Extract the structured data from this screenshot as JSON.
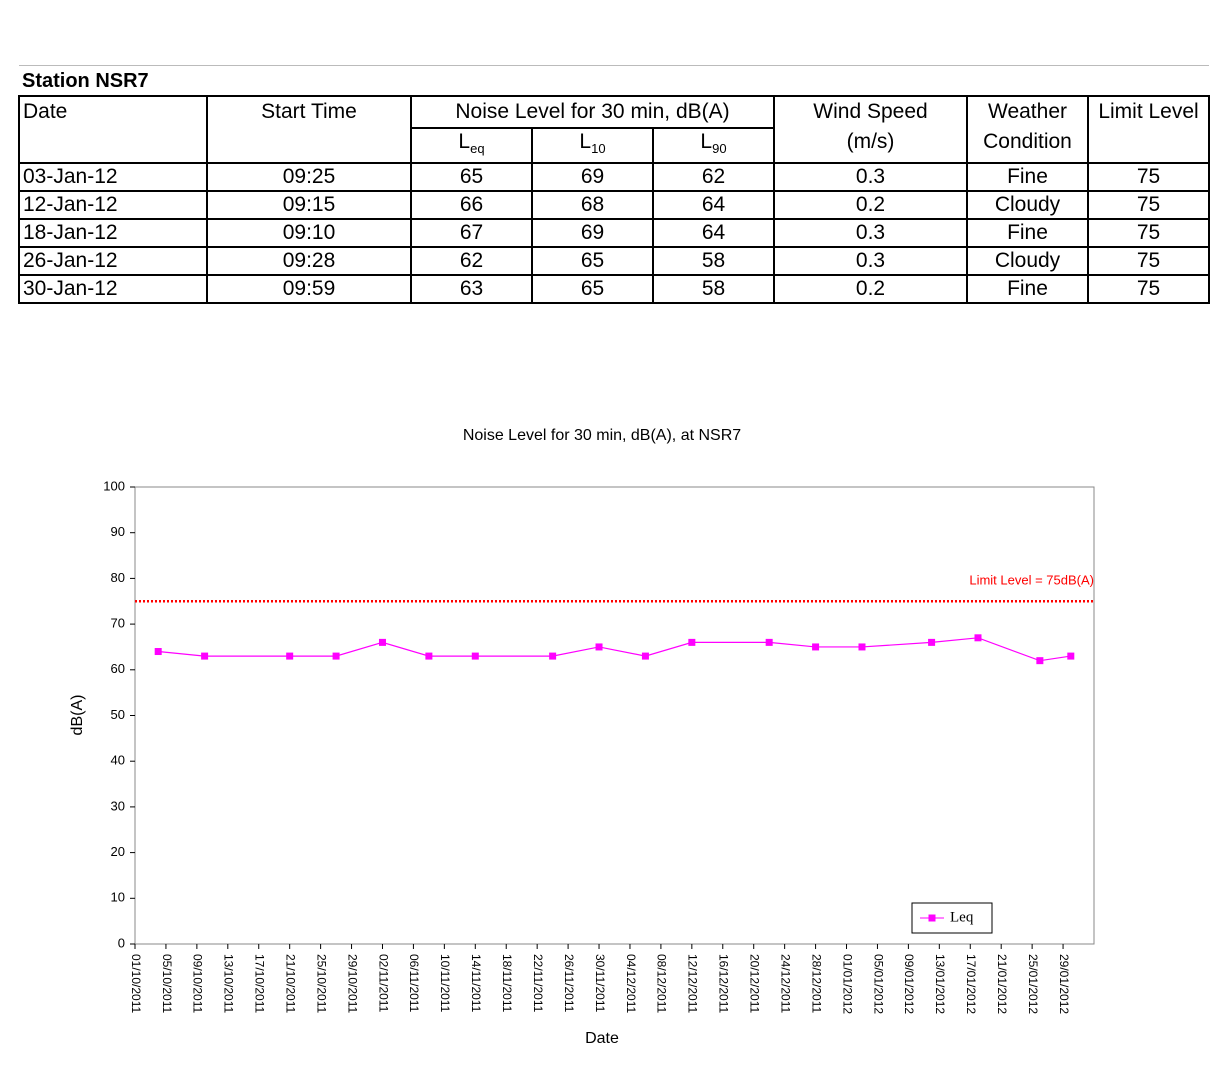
{
  "table": {
    "title": "Station NSR7",
    "headers": [
      [
        "Date"
      ],
      [
        "Start Time"
      ],
      [
        "Noise Level for 30 min, dB(A)"
      ],
      [
        "Wind Speed",
        "(m/s)"
      ],
      [
        "Weather",
        "Condition"
      ],
      [
        "Limit Level"
      ]
    ],
    "subheaders": [
      {
        "main": "L",
        "sub": "eq"
      },
      {
        "main": "L",
        "sub": "10"
      },
      {
        "main": "L",
        "sub": "90"
      }
    ],
    "rows": [
      [
        "03-Jan-12",
        "09:25",
        65,
        69,
        62,
        0.3,
        "Fine",
        75
      ],
      [
        "12-Jan-12",
        "09:15",
        66,
        68,
        64,
        0.2,
        "Cloudy",
        75
      ],
      [
        "18-Jan-12",
        "09:10",
        67,
        69,
        64,
        0.3,
        "Fine",
        75
      ],
      [
        "26-Jan-12",
        "09:28",
        62,
        65,
        58,
        0.3,
        "Cloudy",
        75
      ],
      [
        "30-Jan-12",
        "09:59",
        63,
        65,
        58,
        0.2,
        "Fine",
        75
      ]
    ]
  },
  "chart_data": {
    "type": "line",
    "title": "Noise Level for 30 min, dB(A), at NSR7",
    "x_label": "Date",
    "y_label": "dB(A)",
    "x": [
      "04/10/2011",
      "10/10/2011",
      "21/10/2011",
      "27/10/2011",
      "02/11/2011",
      "08/11/2011",
      "14/11/2011",
      "24/11/2011",
      "30/11/2011",
      "06/12/2011",
      "12/12/2011",
      "22/12/2011",
      "28/12/2011",
      "03/01/2012",
      "12/01/2012",
      "18/01/2012",
      "26/01/2012",
      "30/01/2012"
    ],
    "series": [
      {
        "name": "Leq",
        "color": "#ff00ff",
        "values": [
          64,
          63,
          63,
          63,
          66,
          63,
          63,
          63,
          65,
          63,
          66,
          66,
          65,
          65,
          66,
          67,
          62,
          63
        ]
      }
    ],
    "xlim": [
      "01/10/2011",
      "02/02/2012"
    ],
    "xticks": [
      "01/10/2011",
      "05/10/2011",
      "09/10/2011",
      "13/10/2011",
      "17/10/2011",
      "21/10/2011",
      "25/10/2011",
      "29/10/2011",
      "02/11/2011",
      "06/11/2011",
      "10/11/2011",
      "14/11/2011",
      "18/11/2011",
      "22/11/2011",
      "26/11/2011",
      "30/11/2011",
      "04/12/2011",
      "08/12/2011",
      "12/12/2011",
      "16/12/2011",
      "20/12/2011",
      "24/12/2011",
      "28/12/2011",
      "01/01/2012",
      "05/01/2012",
      "09/01/2012",
      "13/01/2012",
      "17/01/2012",
      "21/01/2012",
      "25/01/2012",
      "29/01/2012"
    ],
    "ylim": [
      0,
      100
    ],
    "yticks": [
      0,
      10,
      20,
      30,
      40,
      50,
      60,
      70,
      80,
      90,
      100
    ],
    "limit": {
      "text": "Limit Level = 75dB(A)",
      "value": 75,
      "color": "#ff0000"
    },
    "legend": "lower right",
    "grid": false
  }
}
